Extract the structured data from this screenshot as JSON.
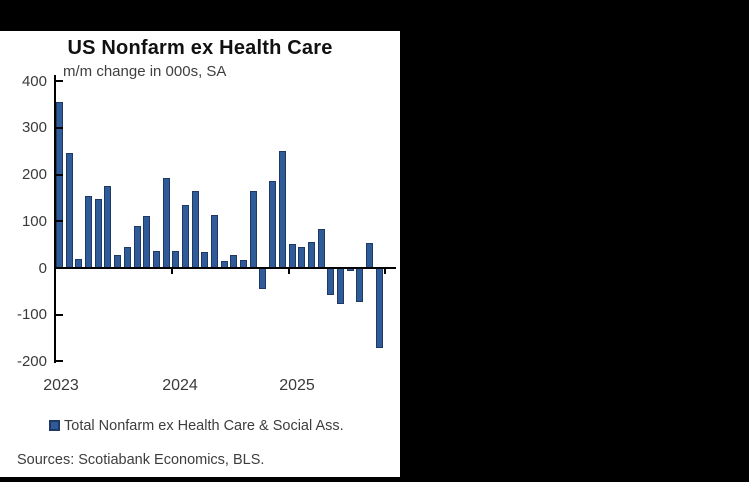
{
  "page": {
    "background": "#000000",
    "panel_background": "#FFFFFF"
  },
  "chart": {
    "title": "US Nonfarm ex Health Care",
    "subtitle": "m/m change in 000s, SA",
    "legend_label": "Total Nonfarm ex Health Care & Social Ass.",
    "sources": "Sources: Scotiabank Economics,  BLS."
  },
  "chart_data": {
    "type": "bar",
    "title": "US Nonfarm ex Health Care",
    "ylabel": "m/m change in 000s, SA",
    "xlabel": "",
    "categories": [
      "Jan-23",
      "Feb-23",
      "Mar-23",
      "Apr-23",
      "May-23",
      "Jun-23",
      "Jul-23",
      "Aug-23",
      "Sep-23",
      "Oct-23",
      "Nov-23",
      "Dec-23",
      "Jan-24",
      "Feb-24",
      "Mar-24",
      "Apr-24",
      "May-24",
      "Jun-24",
      "Jul-24",
      "Aug-24",
      "Sep-24",
      "Oct-24",
      "Nov-24",
      "Dec-24",
      "Jan-25",
      "Feb-25",
      "Mar-25",
      "Apr-25",
      "May-25",
      "Jun-25",
      "Jul-25",
      "Aug-25",
      "Sep-25",
      "Oct-25"
    ],
    "series": [
      {
        "name": "Total Nonfarm ex Health Care & Social Ass.",
        "values": [
          356,
          246,
          19,
          154,
          148,
          176,
          27,
          45,
          89,
          111,
          37,
          193,
          37,
          134,
          165,
          34,
          114,
          16,
          27,
          18,
          164,
          -46,
          186,
          251,
          51,
          46,
          56,
          83,
          -57,
          -78,
          -6,
          -73,
          54,
          -172
        ]
      }
    ],
    "ylim": [
      -200,
      400
    ],
    "yticks": [
      400,
      300,
      200,
      100,
      0,
      -100,
      -200
    ],
    "xticks": [
      "2023",
      "2024",
      "2025"
    ],
    "grid": false,
    "legend_position": "bottom",
    "colors": {
      "bar_fill": "#2F5C99",
      "bar_border": "#1F3864",
      "axis": "#000000",
      "text": "#3A3A3A",
      "title_text": "#111111"
    }
  }
}
